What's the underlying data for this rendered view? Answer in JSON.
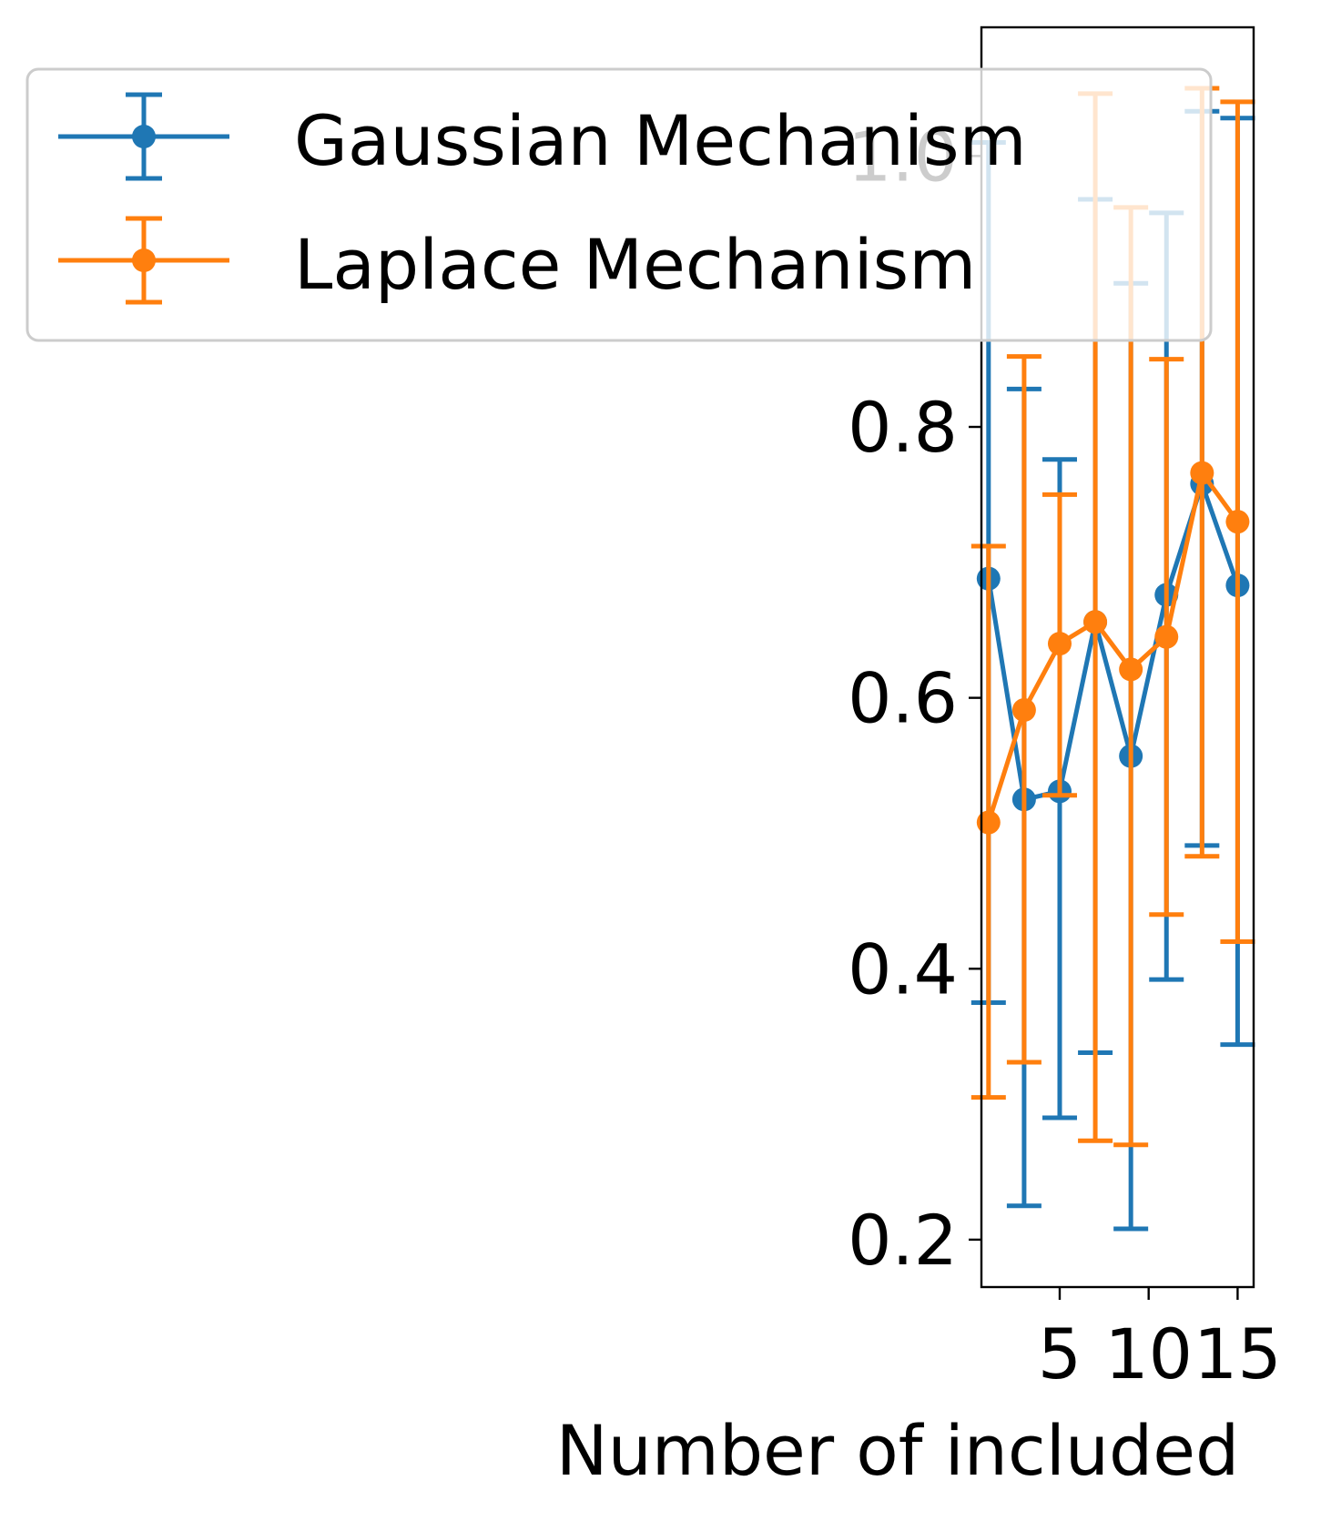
{
  "chart_data": {
    "type": "line",
    "title": "",
    "xlabel": "Number of included",
    "ylabel": "",
    "x": [
      1,
      3,
      5,
      7,
      9,
      11,
      13,
      15
    ],
    "xticks": [
      5,
      10,
      15
    ],
    "xlim": [
      0.6,
      15.9
    ],
    "yticks": [
      0.2,
      0.4,
      0.6,
      0.8,
      1.0
    ],
    "ytick_labels": [
      "0.2",
      "0.4",
      "0.6",
      "0.8",
      "1.0"
    ],
    "ylim": [
      0.165,
      1.095
    ],
    "legend_position": "top-left",
    "series": [
      {
        "name": "Gaussian Mechanism",
        "color": "#1f77b4",
        "values": [
          0.688,
          0.525,
          0.531,
          0.656,
          0.557,
          0.676,
          0.758,
          0.683
        ],
        "err_low": [
          0.375,
          0.225,
          0.29,
          0.338,
          0.208,
          0.392,
          0.491,
          0.344
        ],
        "err_high": [
          1.01,
          0.828,
          0.776,
          0.968,
          0.906,
          0.958,
          1.033,
          1.028
        ]
      },
      {
        "name": "Laplace Mechanism",
        "color": "#ff7f0e",
        "values": [
          0.508,
          0.591,
          0.64,
          0.656,
          0.621,
          0.645,
          0.766,
          0.73
        ],
        "err_low": [
          0.305,
          0.331,
          0.528,
          0.273,
          0.27,
          0.44,
          0.483,
          0.42
        ],
        "err_high": [
          0.712,
          0.852,
          0.75,
          1.046,
          0.962,
          0.85,
          1.05,
          1.04
        ]
      }
    ]
  }
}
